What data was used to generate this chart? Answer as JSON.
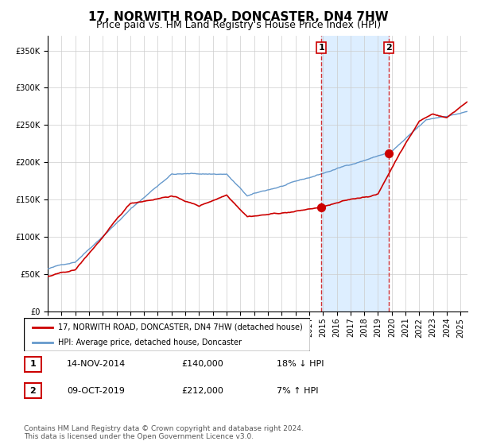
{
  "title": "17, NORWITH ROAD, DONCASTER, DN4 7HW",
  "subtitle": "Price paid vs. HM Land Registry's House Price Index (HPI)",
  "title_fontsize": 11,
  "subtitle_fontsize": 9,
  "ylabel_fontsize": 8,
  "tick_fontsize": 7,
  "legend_label_red": "17, NORWITH ROAD, DONCASTER, DN4 7HW (detached house)",
  "legend_label_blue": "HPI: Average price, detached house, Doncaster",
  "table_row1": [
    "1",
    "14-NOV-2014",
    "£140,000",
    "18% ↓ HPI"
  ],
  "table_row2": [
    "2",
    "09-OCT-2019",
    "£212,000",
    "7% ↑ HPI"
  ],
  "footer": "Contains HM Land Registry data © Crown copyright and database right 2024.\nThis data is licensed under the Open Government Licence v3.0.",
  "red_color": "#cc0000",
  "blue_color": "#6699cc",
  "shade_color": "#ddeeff",
  "grid_color": "#cccccc",
  "point1_x": 2014.875,
  "point1_y": 140000,
  "point2_x": 2019.77,
  "point2_y": 212000,
  "vline1_x": 2014.875,
  "vline2_x": 2019.77,
  "ylim": [
    0,
    370000
  ],
  "xlim_start": 1995.0,
  "xlim_end": 2025.5
}
